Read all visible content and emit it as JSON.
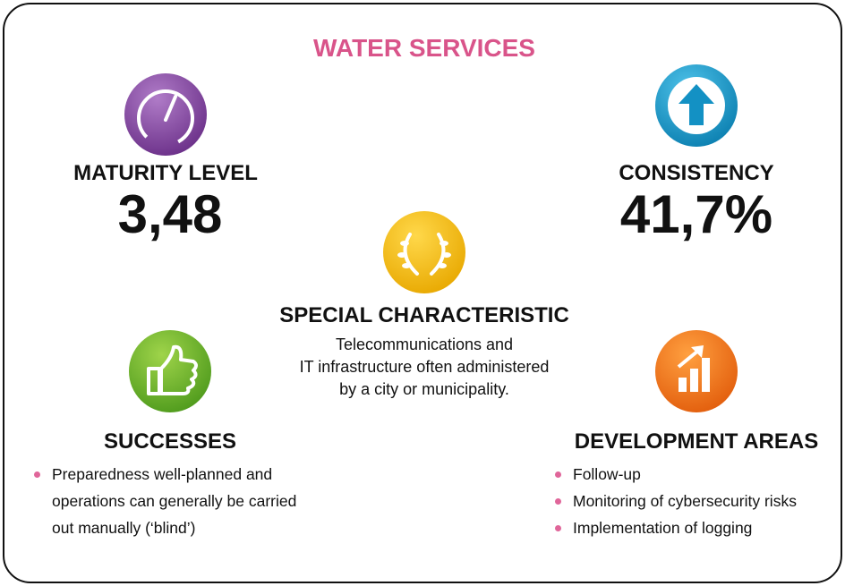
{
  "title": "WATER SERVICES",
  "maturity": {
    "label": "MATURITY LEVEL",
    "value": "3,48"
  },
  "consistency": {
    "label": "CONSISTENCY",
    "value": "41,7%"
  },
  "special": {
    "label": "SPECIAL CHARACTERISTIC",
    "lines": [
      "Telecommunications and",
      "IT infrastructure often administered",
      "by a city or municipality."
    ]
  },
  "successes": {
    "label": "SUCCESSES",
    "items": [
      "Preparedness well-planned and operations can generally be carried out manually (‘blind’)"
    ]
  },
  "development": {
    "label": "DEVELOPMENT AREAS",
    "items": [
      "Follow-up",
      "Monitoring of cybersecurity risks",
      "Implementation of logging"
    ]
  }
}
